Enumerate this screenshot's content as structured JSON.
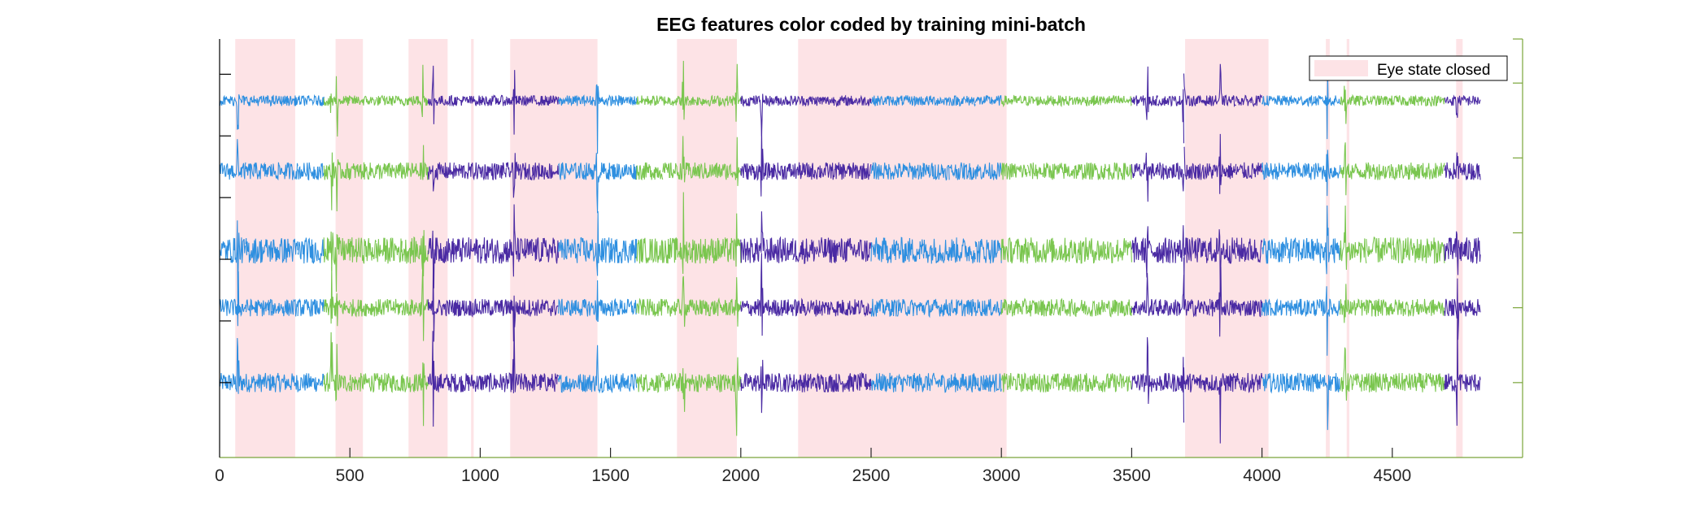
{
  "chart_data": {
    "type": "line",
    "title": "EEG features color coded by training mini-batch",
    "xlabel": "",
    "ylabel": "",
    "xlim": [
      0,
      5000
    ],
    "x_ticks": [
      0,
      500,
      1000,
      1500,
      2000,
      2500,
      3000,
      3500,
      4000,
      4500
    ],
    "x_tick_labels": [
      "0",
      "500",
      "1000",
      "1500",
      "2000",
      "2500",
      "3000",
      "3500",
      "4000",
      "4500"
    ],
    "n_samples": 4840,
    "grid": false,
    "legend": {
      "position": "top-right",
      "entries": [
        "Eye state closed"
      ]
    },
    "shaded_regions": {
      "name": "Eye state closed",
      "color": "#fde3e6",
      "intervals": [
        [
          60,
          290
        ],
        [
          445,
          550
        ],
        [
          725,
          875
        ],
        [
          965,
          975
        ],
        [
          1115,
          1450
        ],
        [
          1755,
          1985
        ],
        [
          2220,
          3020
        ],
        [
          3705,
          4025
        ],
        [
          4245,
          4260
        ],
        [
          4325,
          4335
        ],
        [
          4745,
          4770
        ]
      ]
    },
    "minibatch_colors": [
      "#2e8fe0",
      "#7ac64f",
      "#4a2aa3"
    ],
    "minibatch_size": 100,
    "batch_color_sequence": [
      0,
      0,
      0,
      0,
      1,
      1,
      1,
      1,
      2,
      2,
      2,
      2,
      2,
      0,
      0,
      0,
      1,
      1,
      1,
      1,
      2,
      2,
      2,
      2,
      2,
      0,
      0,
      0,
      0,
      0,
      1,
      1,
      1,
      1,
      1,
      2,
      2,
      2,
      2,
      2,
      0,
      0,
      0,
      1,
      1,
      1,
      1,
      2,
      2,
      2,
      2,
      2
    ],
    "series": [
      {
        "baseline": 0.72,
        "amplitude": 0.022,
        "spike_amp": 0.16
      },
      {
        "baseline": 0.89,
        "amplitude": 0.02,
        "spike_amp": 0.12
      },
      {
        "baseline": 1.02,
        "amplitude": 0.03,
        "spike_amp": 0.12
      },
      {
        "baseline": 1.2,
        "amplitude": 0.02,
        "spike_amp": 0.1
      },
      {
        "baseline": 1.36,
        "amplitude": 0.012,
        "spike_amp": 0.12
      }
    ],
    "ylim": [
      0.55,
      1.5
    ],
    "axis_color": "#7aa53a"
  }
}
